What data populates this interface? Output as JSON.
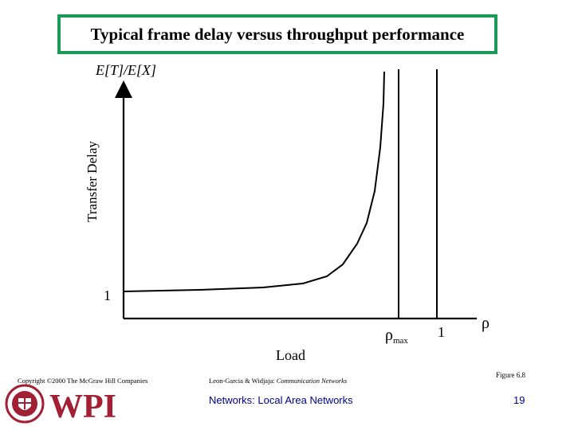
{
  "header": {
    "title": "Typical frame delay versus throughput performance"
  },
  "chart_data": {
    "type": "line",
    "title": "Typical frame delay versus throughput performance",
    "xlabel": "Load",
    "ylabel": "Transfer Delay",
    "y_unit_label": "E[T]/E[X]",
    "y_tick_label": "1",
    "x_tick_labels": {
      "rho_max_symbol": "ρ",
      "rho_max_subscript": "max",
      "one": "1",
      "rho": "ρ"
    },
    "curve_shape": "delay starts near 1 and rises sharply toward a vertical asymptote at rho_max",
    "vertical_lines": [
      "rho_max",
      "1"
    ]
  },
  "footer": {
    "copyright": "Copyright ©2000 The McGraw Hill Companies",
    "authors_prefix": "Leon-Garcia & Widjaja:",
    "authors_book": "Communication Networks",
    "figure": "Figure 6.8",
    "course_title": "Networks: Local Area Networks",
    "page": "19",
    "logo_text": "WPI"
  },
  "colors": {
    "title_border": "#1b9a57",
    "footer_text": "#00008b",
    "logo_red": "#a31f34"
  }
}
